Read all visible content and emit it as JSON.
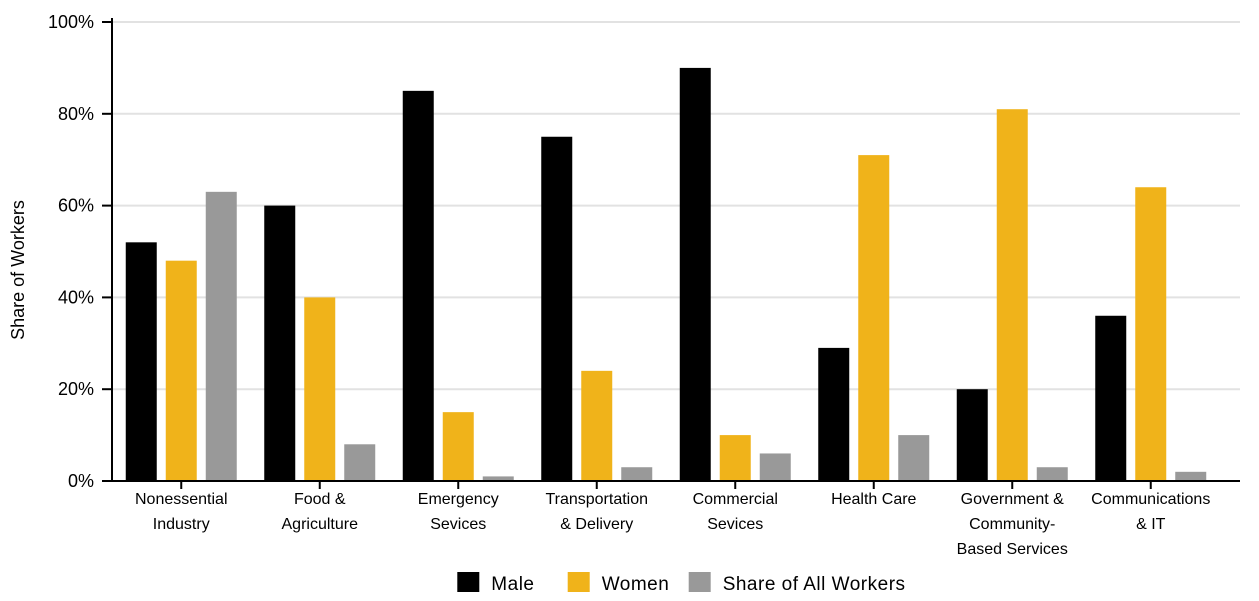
{
  "chart_data": {
    "type": "bar",
    "ylabel": "Share of Workers",
    "ylim": [
      0,
      100
    ],
    "yticks": [
      "0%",
      "20%",
      "40%",
      "60%",
      "80%",
      "100%"
    ],
    "ytick_values": [
      0,
      20,
      40,
      60,
      80,
      100
    ],
    "grid": true,
    "legend_position": "bottom",
    "categories": [
      [
        "Nonessential",
        "Industry"
      ],
      [
        "Food &",
        "Agriculture"
      ],
      [
        "Emergency",
        "Sevices"
      ],
      [
        "Transportation",
        "& Delivery"
      ],
      [
        "Commercial",
        "Sevices"
      ],
      [
        "Health Care"
      ],
      [
        "Government &",
        "Community-",
        "Based Services"
      ],
      [
        "Communications",
        "& IT"
      ]
    ],
    "series": [
      {
        "name": "Male",
        "color": "#000000",
        "values": [
          52,
          60,
          85,
          75,
          90,
          29,
          20,
          36
        ]
      },
      {
        "name": "Women",
        "color": "#f0b31a",
        "values": [
          48,
          40,
          15,
          24,
          10,
          71,
          81,
          64
        ]
      },
      {
        "name": "Share of All Workers",
        "color": "#999999",
        "values": [
          63,
          8,
          1,
          3,
          6,
          10,
          3,
          2
        ]
      }
    ]
  }
}
